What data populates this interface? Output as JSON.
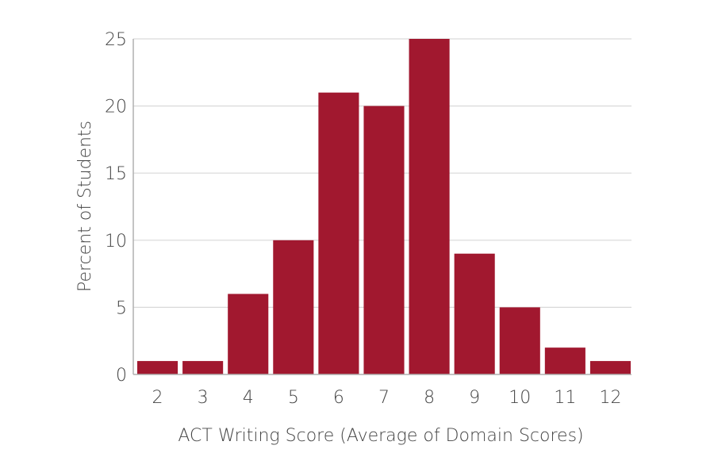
{
  "chart_data": {
    "type": "bar",
    "categories": [
      "2",
      "3",
      "4",
      "5",
      "6",
      "7",
      "8",
      "9",
      "10",
      "11",
      "12"
    ],
    "values": [
      1,
      1,
      6,
      10,
      21,
      20,
      25,
      9,
      5,
      2,
      1
    ],
    "title": "",
    "xlabel": "ACT Writing Score (Average of Domain Scores)",
    "ylabel": "Percent of Students",
    "ylim": [
      0,
      25
    ],
    "yticks": [
      "0",
      "5",
      "10",
      "15",
      "20",
      "25"
    ],
    "grid": true,
    "legend": "none",
    "colors": {
      "bar": "#a1182f",
      "grid": "#d9d9d9",
      "axis": "#b0b0b0",
      "text": "#444444"
    }
  }
}
